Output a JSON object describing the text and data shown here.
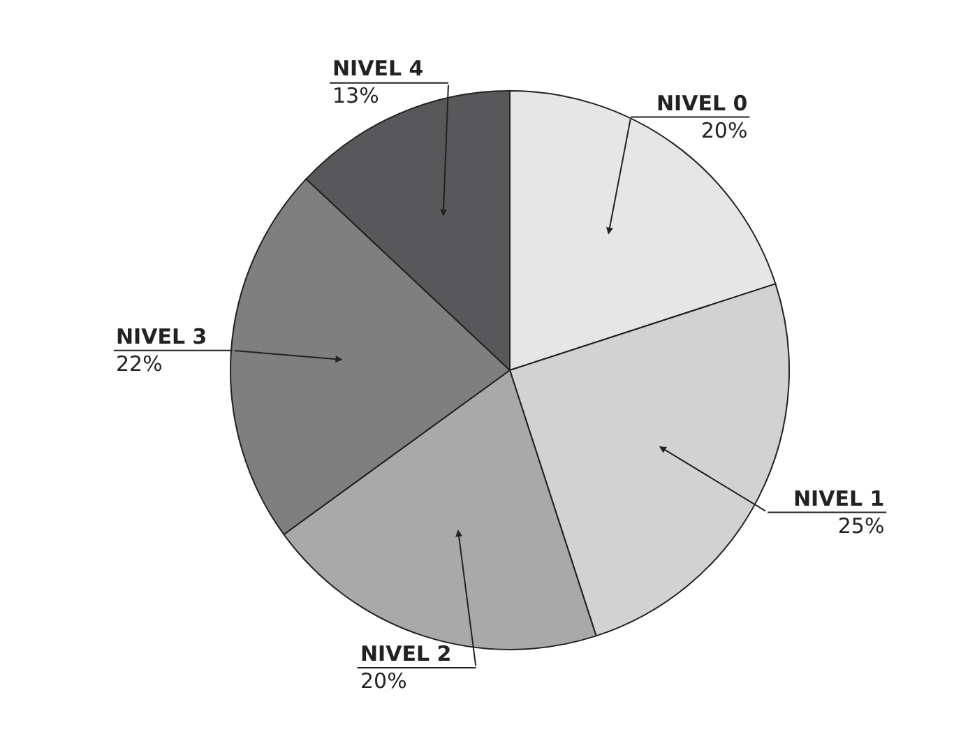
{
  "chart_data": {
    "type": "pie",
    "categories": [
      "NIVEL 0",
      "NIVEL 1",
      "NIVEL 2",
      "NIVEL 3",
      "NIVEL 4"
    ],
    "values": [
      20,
      25,
      20,
      22,
      13
    ],
    "value_labels": [
      "20%",
      "25%",
      "20%",
      "22%",
      "13%"
    ],
    "colors": [
      "#e6e6e6",
      "#d2d2d2",
      "#a9a9a9",
      "#7f7f7f",
      "#58585a"
    ],
    "legend": false
  }
}
